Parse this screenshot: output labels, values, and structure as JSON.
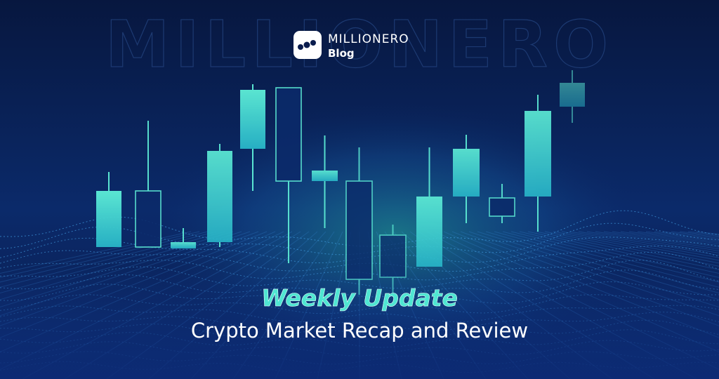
{
  "watermark": "MILLIONERO",
  "logo": {
    "brand": "MILLIONERO",
    "section": "Blog"
  },
  "headline": {
    "kicker": "Weekly Update",
    "title": "Crypto Market Recap and Review"
  }
}
